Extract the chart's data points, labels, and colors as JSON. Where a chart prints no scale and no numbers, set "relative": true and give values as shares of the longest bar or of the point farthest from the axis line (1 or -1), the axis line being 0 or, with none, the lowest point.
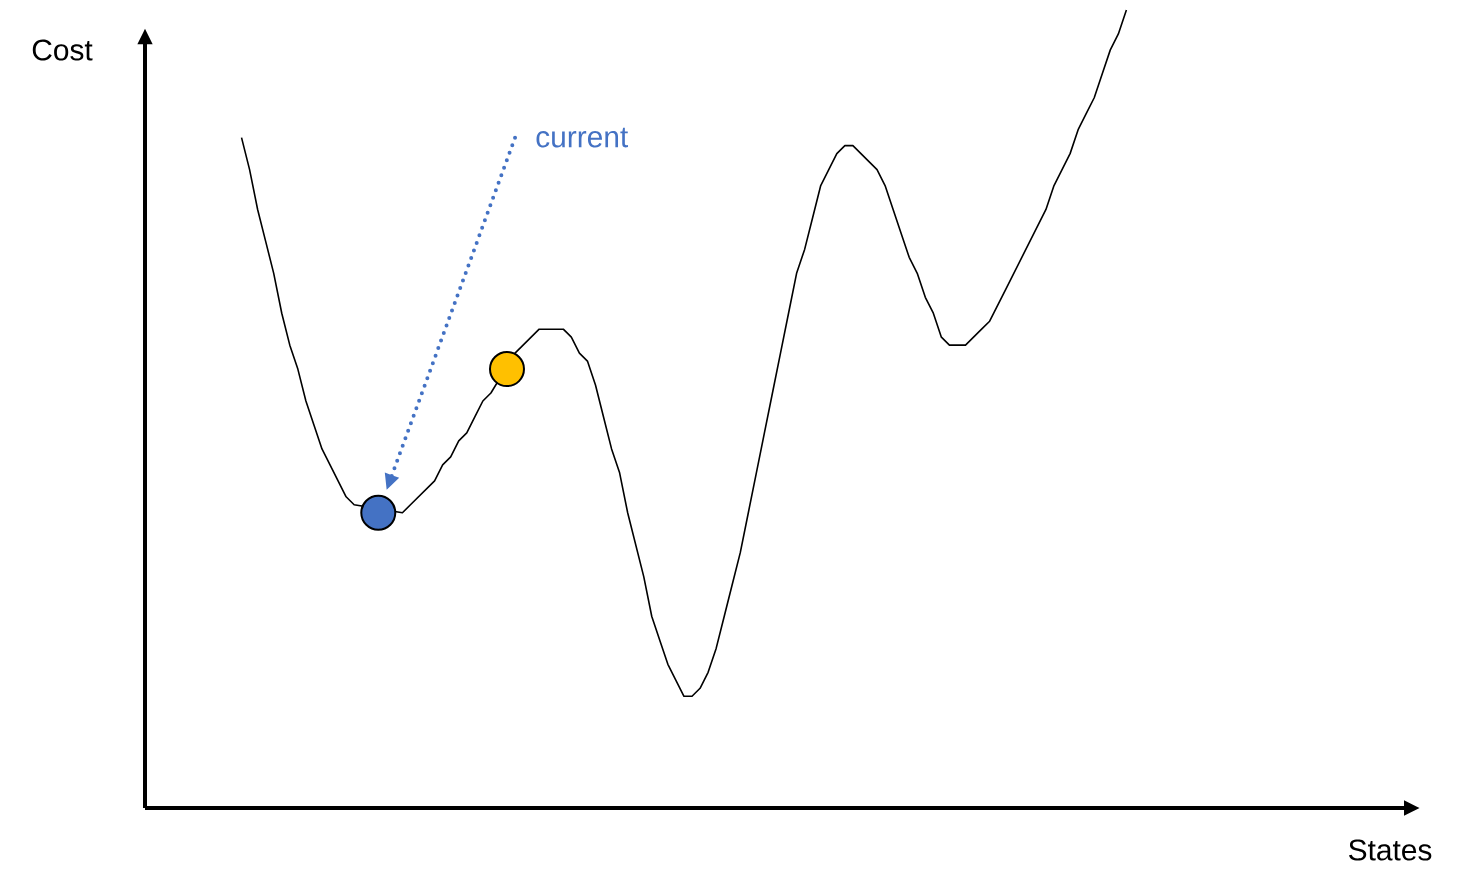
{
  "chart_data": {
    "type": "line",
    "relative": true,
    "ylabel": "Cost",
    "categories": [
      null,
      null,
      null,
      null,
      null,
      null,
      null,
      null,
      null,
      null,
      null,
      null,
      null,
      null,
      null,
      null,
      null,
      null,
      null,
      null,
      null,
      null,
      null,
      null,
      null,
      null,
      null,
      null,
      null,
      null,
      null,
      null,
      null,
      null,
      null,
      null,
      null,
      null,
      null,
      null,
      null,
      null,
      null,
      null,
      null,
      null,
      null,
      null,
      null,
      null,
      null,
      null,
      null,
      null,
      null,
      null,
      null,
      null,
      null,
      null,
      null,
      null,
      null,
      null,
      null,
      null,
      null,
      null,
      null,
      null,
      null,
      null,
      null,
      null,
      null,
      null,
      null,
      null,
      null,
      null,
      null,
      null,
      null,
      null,
      null,
      null,
      null,
      null,
      null,
      null,
      null,
      null,
      null,
      null,
      null,
      null,
      null,
      null,
      null,
      null,
      null,
      null,
      null,
      null,
      null,
      null,
      null,
      null,
      null,
      null,
      null
    ],
    "series": [
      {
        "color": "#000000",
        "values": [
          0.84,
          0.8,
          0.75,
          0.71,
          0.67,
          0.62,
          0.58,
          0.55,
          0.51,
          0.48,
          0.45,
          0.43,
          0.41,
          0.39,
          0.38,
          null,
          null,
          null,
          null,
          null,
          0.37,
          0.38,
          0.39,
          0.4,
          0.41,
          0.43,
          0.44,
          0.46,
          0.47,
          0.49,
          0.51,
          0.52,
          null,
          null,
          0.57,
          0.58,
          0.59,
          0.6,
          0.6,
          0.6,
          0.6,
          0.59,
          0.57,
          0.56,
          0.53,
          0.49,
          0.45,
          0.42,
          0.37,
          0.33,
          0.29,
          0.24,
          0.21,
          0.18,
          0.16,
          0.14,
          0.14,
          0.15,
          0.17,
          0.2,
          0.24,
          0.28,
          0.32,
          0.37,
          0.42,
          0.47,
          0.52,
          0.57,
          0.62,
          0.67,
          0.7,
          0.74,
          0.78,
          0.8,
          0.82,
          0.83,
          0.83,
          0.82,
          0.81,
          0.8,
          0.78,
          0.75,
          0.72,
          0.69,
          0.67,
          0.64,
          0.62,
          0.59,
          0.58,
          0.58,
          0.58,
          0.59,
          0.6,
          0.61,
          0.63,
          0.65,
          0.67,
          0.69,
          0.71,
          0.73,
          0.75,
          0.78,
          0.8,
          0.82,
          0.85,
          0.87,
          0.89,
          0.92,
          0.95,
          0.97,
          1.0
        ]
      },
      {
        "color": "#4472c4",
        "marker": "circle",
        "values": [
          null,
          null,
          null,
          null,
          null,
          null,
          null,
          null,
          null,
          null,
          null,
          null,
          null,
          null,
          null,
          null,
          null,
          0.37,
          null,
          null,
          null,
          null,
          null,
          null,
          null,
          null,
          null,
          null,
          null,
          null,
          null,
          null,
          null,
          null,
          null,
          null,
          null,
          null,
          null,
          null,
          null,
          null,
          null,
          null,
          null,
          null,
          null,
          null,
          null,
          null,
          null,
          null,
          null,
          null,
          null,
          null,
          null,
          null,
          null,
          null,
          null,
          null,
          null,
          null,
          null,
          null,
          null,
          null,
          null,
          null,
          null,
          null,
          null,
          null,
          null,
          null,
          null,
          null,
          null,
          null,
          null,
          null,
          null,
          null,
          null,
          null,
          null,
          null,
          null,
          null,
          null,
          null,
          null,
          null,
          null,
          null,
          null,
          null,
          null,
          null,
          null,
          null,
          null,
          null,
          null,
          null,
          null,
          null,
          null,
          null,
          null
        ]
      },
      {
        "color": "#ffc000",
        "marker": "circle",
        "values": [
          null,
          null,
          null,
          null,
          null,
          null,
          null,
          null,
          null,
          null,
          null,
          null,
          null,
          null,
          null,
          null,
          null,
          null,
          null,
          null,
          null,
          null,
          null,
          null,
          null,
          null,
          null,
          null,
          null,
          null,
          null,
          null,
          null,
          0.55,
          null,
          null,
          null,
          null,
          null,
          null,
          null,
          null,
          null,
          null,
          null,
          null,
          null,
          null,
          null,
          null,
          null,
          null,
          null,
          null,
          null,
          null,
          null,
          null,
          null,
          null,
          null,
          null,
          null,
          null,
          null,
          null,
          null,
          null,
          null,
          null,
          null,
          null,
          null,
          null,
          null,
          null,
          null,
          null,
          null,
          null,
          null,
          null,
          null,
          null,
          null,
          null,
          null,
          null,
          null,
          null,
          null,
          null,
          null,
          null,
          null,
          null,
          null,
          null,
          null,
          null,
          null,
          null,
          null,
          null,
          null,
          null,
          null,
          null,
          null,
          null,
          null
        ]
      }
    ],
    "annotations": [
      "current",
      "States"
    ]
  }
}
